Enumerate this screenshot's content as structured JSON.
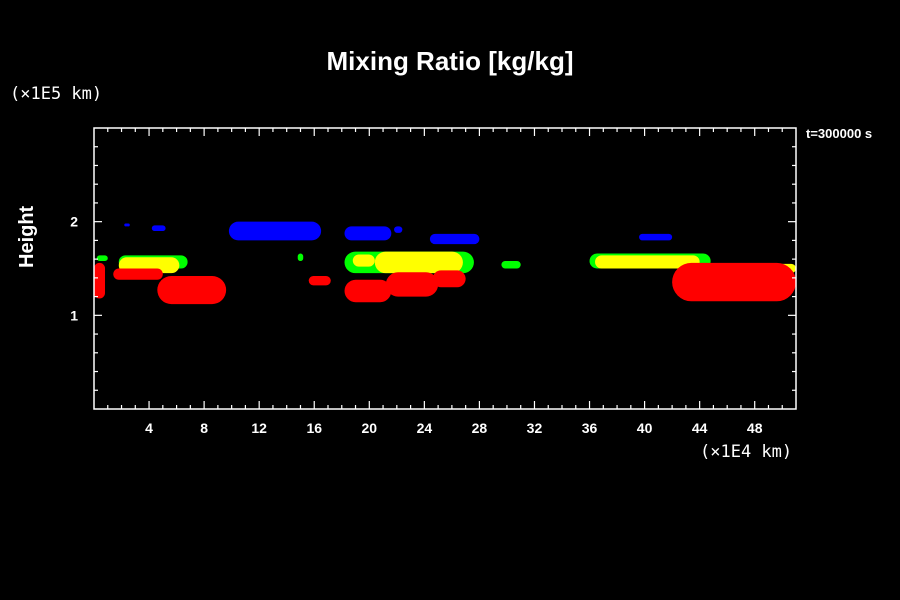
{
  "chart_data": {
    "type": "heatmap",
    "title": "Mixing Ratio [kg/kg]",
    "ylabel": "Height",
    "y_unit": "(×1E5 km)",
    "x_unit": "(×1E4 km)",
    "time_label": "t=300000 s",
    "xlim": [
      0,
      51
    ],
    "ylim": [
      0,
      3
    ],
    "x_ticks": [
      "4",
      "8",
      "12",
      "16",
      "20",
      "24",
      "28",
      "32",
      "36",
      "40",
      "44",
      "48"
    ],
    "y_ticks": [
      "1",
      "2"
    ],
    "colors": {
      "red": "#ff0000",
      "yellow": "#ffff00",
      "green": "#00ff00",
      "blue": "#0000ff"
    },
    "regions": [
      {
        "color": "blue",
        "x": [
          9.8,
          16.5
        ],
        "y": [
          1.8,
          2.0
        ]
      },
      {
        "color": "blue",
        "x": [
          18.2,
          21.6
        ],
        "y": [
          1.8,
          1.95
        ]
      },
      {
        "color": "blue",
        "x": [
          2.2,
          2.6
        ],
        "y": [
          1.95,
          1.98
        ]
      },
      {
        "color": "blue",
        "x": [
          4.2,
          5.2
        ],
        "y": [
          1.9,
          1.96
        ]
      },
      {
        "color": "blue",
        "x": [
          21.8,
          22.4
        ],
        "y": [
          1.88,
          1.95
        ]
      },
      {
        "color": "blue",
        "x": [
          24.4,
          28.0
        ],
        "y": [
          1.76,
          1.87
        ]
      },
      {
        "color": "blue",
        "x": [
          39.6,
          42.0
        ],
        "y": [
          1.8,
          1.87
        ]
      },
      {
        "color": "green",
        "x": [
          0.2,
          1.0
        ],
        "y": [
          1.58,
          1.64
        ]
      },
      {
        "color": "green",
        "x": [
          1.8,
          6.8
        ],
        "y": [
          1.5,
          1.64
        ]
      },
      {
        "color": "green",
        "x": [
          14.8,
          15.2
        ],
        "y": [
          1.58,
          1.66
        ]
      },
      {
        "color": "green",
        "x": [
          18.2,
          27.6
        ],
        "y": [
          1.45,
          1.68
        ]
      },
      {
        "color": "green",
        "x": [
          29.6,
          31.0
        ],
        "y": [
          1.5,
          1.58
        ]
      },
      {
        "color": "green",
        "x": [
          36.0,
          44.8
        ],
        "y": [
          1.5,
          1.66
        ]
      },
      {
        "color": "yellow",
        "x": [
          1.8,
          6.2
        ],
        "y": [
          1.45,
          1.62
        ]
      },
      {
        "color": "yellow",
        "x": [
          18.8,
          20.4
        ],
        "y": [
          1.52,
          1.65
        ]
      },
      {
        "color": "yellow",
        "x": [
          20.4,
          26.8
        ],
        "y": [
          1.45,
          1.68
        ]
      },
      {
        "color": "yellow",
        "x": [
          36.4,
          44.0
        ],
        "y": [
          1.5,
          1.64
        ]
      },
      {
        "color": "yellow",
        "x": [
          48.4,
          51.0
        ],
        "y": [
          1.45,
          1.55
        ]
      },
      {
        "color": "red",
        "x": [
          0.0,
          0.8
        ],
        "y": [
          1.18,
          1.56
        ]
      },
      {
        "color": "red",
        "x": [
          1.4,
          5.0
        ],
        "y": [
          1.38,
          1.5
        ]
      },
      {
        "color": "red",
        "x": [
          4.6,
          9.6
        ],
        "y": [
          1.12,
          1.42
        ]
      },
      {
        "color": "red",
        "x": [
          15.6,
          17.2
        ],
        "y": [
          1.32,
          1.42
        ]
      },
      {
        "color": "red",
        "x": [
          18.2,
          21.6
        ],
        "y": [
          1.14,
          1.38
        ]
      },
      {
        "color": "red",
        "x": [
          21.2,
          25.0
        ],
        "y": [
          1.2,
          1.46
        ]
      },
      {
        "color": "red",
        "x": [
          24.6,
          27.0
        ],
        "y": [
          1.3,
          1.48
        ]
      },
      {
        "color": "red",
        "x": [
          42.0,
          51.0
        ],
        "y": [
          1.15,
          1.56
        ]
      }
    ]
  }
}
